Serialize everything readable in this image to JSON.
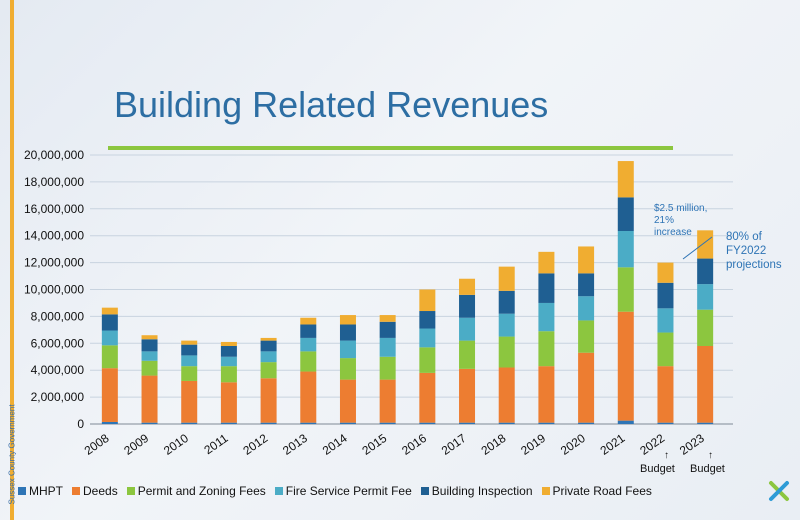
{
  "slide": {
    "side_text": "Sussex County Government",
    "title": "Building Related Revenues",
    "annotation_increase": [
      "$2.5 million,",
      "21%",
      "increase"
    ],
    "annotation_projection": [
      "80% of",
      "FY2022",
      "projections"
    ],
    "budget_labels": [
      "Budget",
      "Budget"
    ],
    "logo_icon": "x-logo-icon"
  },
  "chart_data": {
    "type": "bar",
    "stacked": true,
    "categories": [
      "2008",
      "2009",
      "2010",
      "2011",
      "2012",
      "2013",
      "2014",
      "2015",
      "2016",
      "2017",
      "2018",
      "2019",
      "2020",
      "2021",
      "2022",
      "2023"
    ],
    "y_tick_labels": [
      "0",
      "2,000,000",
      "4,000,000",
      "6,000,000",
      "8,000,000",
      "10,000,000",
      "12,000,000",
      "14,000,000",
      "16,000,000",
      "18,000,000",
      "20,000,000"
    ],
    "ylim": [
      0,
      20000000
    ],
    "grid": true,
    "legend_position": "bottom",
    "series": [
      {
        "name": "MHPT",
        "color": "#2e75b6",
        "values": [
          150000,
          100000,
          100000,
          100000,
          100000,
          100000,
          100000,
          100000,
          100000,
          100000,
          100000,
          100000,
          100000,
          250000,
          100000,
          100000
        ]
      },
      {
        "name": "Deeds",
        "color": "#ed7d31",
        "values": [
          4000000,
          3500000,
          3100000,
          3000000,
          3300000,
          3800000,
          3200000,
          3200000,
          3700000,
          4000000,
          4100000,
          4200000,
          5200000,
          8100000,
          4200000,
          5700000
        ]
      },
      {
        "name": "Permit and Zoning Fees",
        "color": "#8cc63f",
        "values": [
          1700000,
          1100000,
          1100000,
          1200000,
          1200000,
          1500000,
          1600000,
          1700000,
          1900000,
          2100000,
          2300000,
          2600000,
          2400000,
          3300000,
          2500000,
          2700000
        ]
      },
      {
        "name": "Fire Service Permit Fee",
        "color": "#4bacc6",
        "values": [
          1100000,
          700000,
          800000,
          700000,
          800000,
          1000000,
          1300000,
          1400000,
          1400000,
          1700000,
          1700000,
          2100000,
          1800000,
          2700000,
          1800000,
          1900000
        ]
      },
      {
        "name": "Building Inspection",
        "color": "#1f5f92",
        "values": [
          1200000,
          900000,
          800000,
          800000,
          800000,
          1000000,
          1200000,
          1200000,
          1300000,
          1700000,
          1700000,
          2200000,
          1700000,
          2500000,
          1900000,
          1900000
        ]
      },
      {
        "name": "Private Road Fees",
        "color": "#f0ad31",
        "values": [
          500000,
          300000,
          300000,
          300000,
          200000,
          500000,
          700000,
          500000,
          1600000,
          1200000,
          1800000,
          1600000,
          2000000,
          2700000,
          1500000,
          2100000
        ]
      }
    ]
  }
}
